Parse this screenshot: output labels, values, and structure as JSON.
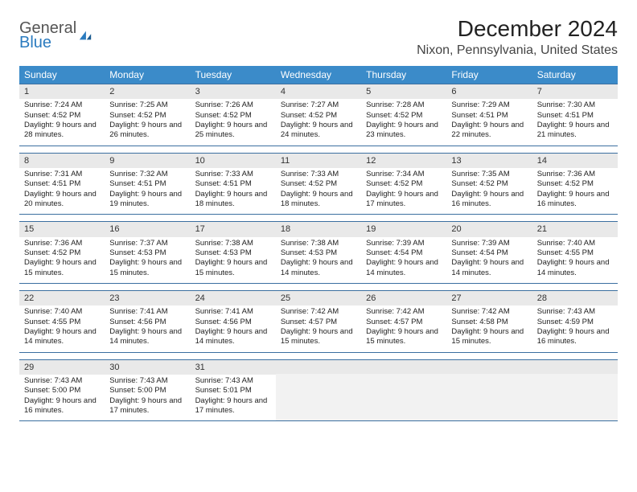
{
  "logo": {
    "line1": "General",
    "line2": "Blue"
  },
  "title": "December 2024",
  "location": "Nixon, Pennsylvania, United States",
  "colors": {
    "header_bg": "#3b8bc9",
    "row_border": "#3b6fa0",
    "daynum_bg": "#e9e9e9",
    "text": "#222222",
    "logo_blue": "#2b7bbf"
  },
  "day_headers": [
    "Sunday",
    "Monday",
    "Tuesday",
    "Wednesday",
    "Thursday",
    "Friday",
    "Saturday"
  ],
  "weeks": [
    [
      {
        "n": "1",
        "sr": "7:24 AM",
        "ss": "4:52 PM",
        "dl": "9 hours and 28 minutes."
      },
      {
        "n": "2",
        "sr": "7:25 AM",
        "ss": "4:52 PM",
        "dl": "9 hours and 26 minutes."
      },
      {
        "n": "3",
        "sr": "7:26 AM",
        "ss": "4:52 PM",
        "dl": "9 hours and 25 minutes."
      },
      {
        "n": "4",
        "sr": "7:27 AM",
        "ss": "4:52 PM",
        "dl": "9 hours and 24 minutes."
      },
      {
        "n": "5",
        "sr": "7:28 AM",
        "ss": "4:52 PM",
        "dl": "9 hours and 23 minutes."
      },
      {
        "n": "6",
        "sr": "7:29 AM",
        "ss": "4:51 PM",
        "dl": "9 hours and 22 minutes."
      },
      {
        "n": "7",
        "sr": "7:30 AM",
        "ss": "4:51 PM",
        "dl": "9 hours and 21 minutes."
      }
    ],
    [
      {
        "n": "8",
        "sr": "7:31 AM",
        "ss": "4:51 PM",
        "dl": "9 hours and 20 minutes."
      },
      {
        "n": "9",
        "sr": "7:32 AM",
        "ss": "4:51 PM",
        "dl": "9 hours and 19 minutes."
      },
      {
        "n": "10",
        "sr": "7:33 AM",
        "ss": "4:51 PM",
        "dl": "9 hours and 18 minutes."
      },
      {
        "n": "11",
        "sr": "7:33 AM",
        "ss": "4:52 PM",
        "dl": "9 hours and 18 minutes."
      },
      {
        "n": "12",
        "sr": "7:34 AM",
        "ss": "4:52 PM",
        "dl": "9 hours and 17 minutes."
      },
      {
        "n": "13",
        "sr": "7:35 AM",
        "ss": "4:52 PM",
        "dl": "9 hours and 16 minutes."
      },
      {
        "n": "14",
        "sr": "7:36 AM",
        "ss": "4:52 PM",
        "dl": "9 hours and 16 minutes."
      }
    ],
    [
      {
        "n": "15",
        "sr": "7:36 AM",
        "ss": "4:52 PM",
        "dl": "9 hours and 15 minutes."
      },
      {
        "n": "16",
        "sr": "7:37 AM",
        "ss": "4:53 PM",
        "dl": "9 hours and 15 minutes."
      },
      {
        "n": "17",
        "sr": "7:38 AM",
        "ss": "4:53 PM",
        "dl": "9 hours and 15 minutes."
      },
      {
        "n": "18",
        "sr": "7:38 AM",
        "ss": "4:53 PM",
        "dl": "9 hours and 14 minutes."
      },
      {
        "n": "19",
        "sr": "7:39 AM",
        "ss": "4:54 PM",
        "dl": "9 hours and 14 minutes."
      },
      {
        "n": "20",
        "sr": "7:39 AM",
        "ss": "4:54 PM",
        "dl": "9 hours and 14 minutes."
      },
      {
        "n": "21",
        "sr": "7:40 AM",
        "ss": "4:55 PM",
        "dl": "9 hours and 14 minutes."
      }
    ],
    [
      {
        "n": "22",
        "sr": "7:40 AM",
        "ss": "4:55 PM",
        "dl": "9 hours and 14 minutes."
      },
      {
        "n": "23",
        "sr": "7:41 AM",
        "ss": "4:56 PM",
        "dl": "9 hours and 14 minutes."
      },
      {
        "n": "24",
        "sr": "7:41 AM",
        "ss": "4:56 PM",
        "dl": "9 hours and 14 minutes."
      },
      {
        "n": "25",
        "sr": "7:42 AM",
        "ss": "4:57 PM",
        "dl": "9 hours and 15 minutes."
      },
      {
        "n": "26",
        "sr": "7:42 AM",
        "ss": "4:57 PM",
        "dl": "9 hours and 15 minutes."
      },
      {
        "n": "27",
        "sr": "7:42 AM",
        "ss": "4:58 PM",
        "dl": "9 hours and 15 minutes."
      },
      {
        "n": "28",
        "sr": "7:43 AM",
        "ss": "4:59 PM",
        "dl": "9 hours and 16 minutes."
      }
    ],
    [
      {
        "n": "29",
        "sr": "7:43 AM",
        "ss": "5:00 PM",
        "dl": "9 hours and 16 minutes."
      },
      {
        "n": "30",
        "sr": "7:43 AM",
        "ss": "5:00 PM",
        "dl": "9 hours and 17 minutes."
      },
      {
        "n": "31",
        "sr": "7:43 AM",
        "ss": "5:01 PM",
        "dl": "9 hours and 17 minutes."
      },
      {
        "empty": true
      },
      {
        "empty": true
      },
      {
        "empty": true
      },
      {
        "empty": true
      }
    ]
  ],
  "labels": {
    "sunrise": "Sunrise:",
    "sunset": "Sunset:",
    "daylight": "Daylight:"
  }
}
